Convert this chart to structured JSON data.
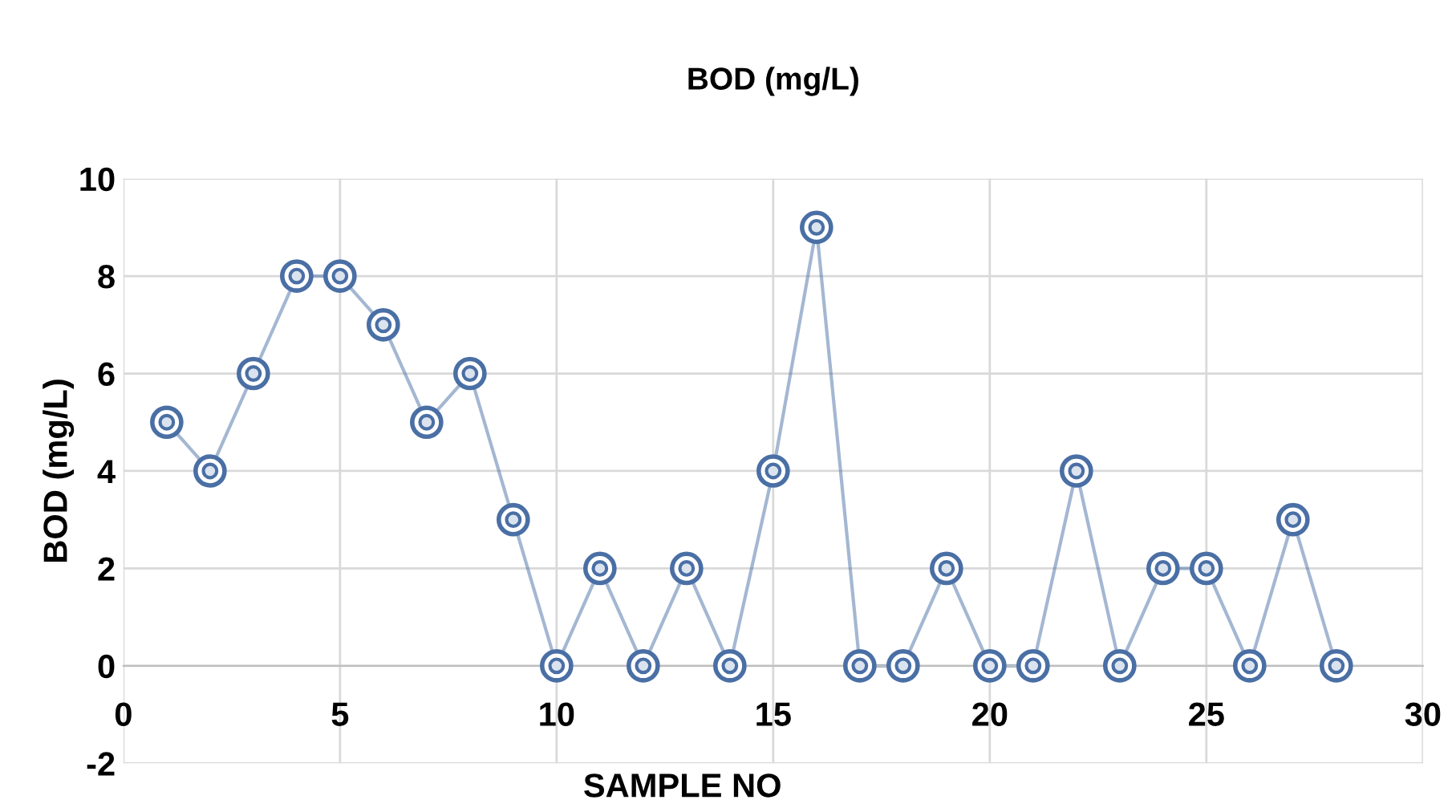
{
  "chart_data": {
    "type": "line",
    "title": "BOD (mg/L)",
    "xlabel": "SAMPLE NO",
    "ylabel": "BOD (mg/L)",
    "x": [
      1,
      2,
      3,
      4,
      5,
      6,
      7,
      8,
      9,
      10,
      11,
      12,
      13,
      14,
      15,
      16,
      17,
      18,
      19,
      20,
      21,
      22,
      23,
      24,
      25,
      26,
      27,
      28
    ],
    "series": [
      {
        "color": "#4a6fa5",
        "values": [
          5,
          4,
          6,
          8,
          8,
          7,
          5,
          6,
          3,
          0,
          2,
          0,
          2,
          0,
          4,
          9,
          0,
          0,
          2,
          0,
          0,
          4,
          0,
          2,
          2,
          0,
          3,
          0
        ]
      }
    ],
    "xlim": [
      0,
      30
    ],
    "xticks": [
      0,
      5,
      10,
      15,
      20,
      25,
      30
    ],
    "ylim": [
      -2,
      10
    ],
    "yticks": [
      -2,
      0,
      2,
      4,
      6,
      8,
      10
    ],
    "grid": true,
    "marker": "circle",
    "line_style": "solid"
  }
}
